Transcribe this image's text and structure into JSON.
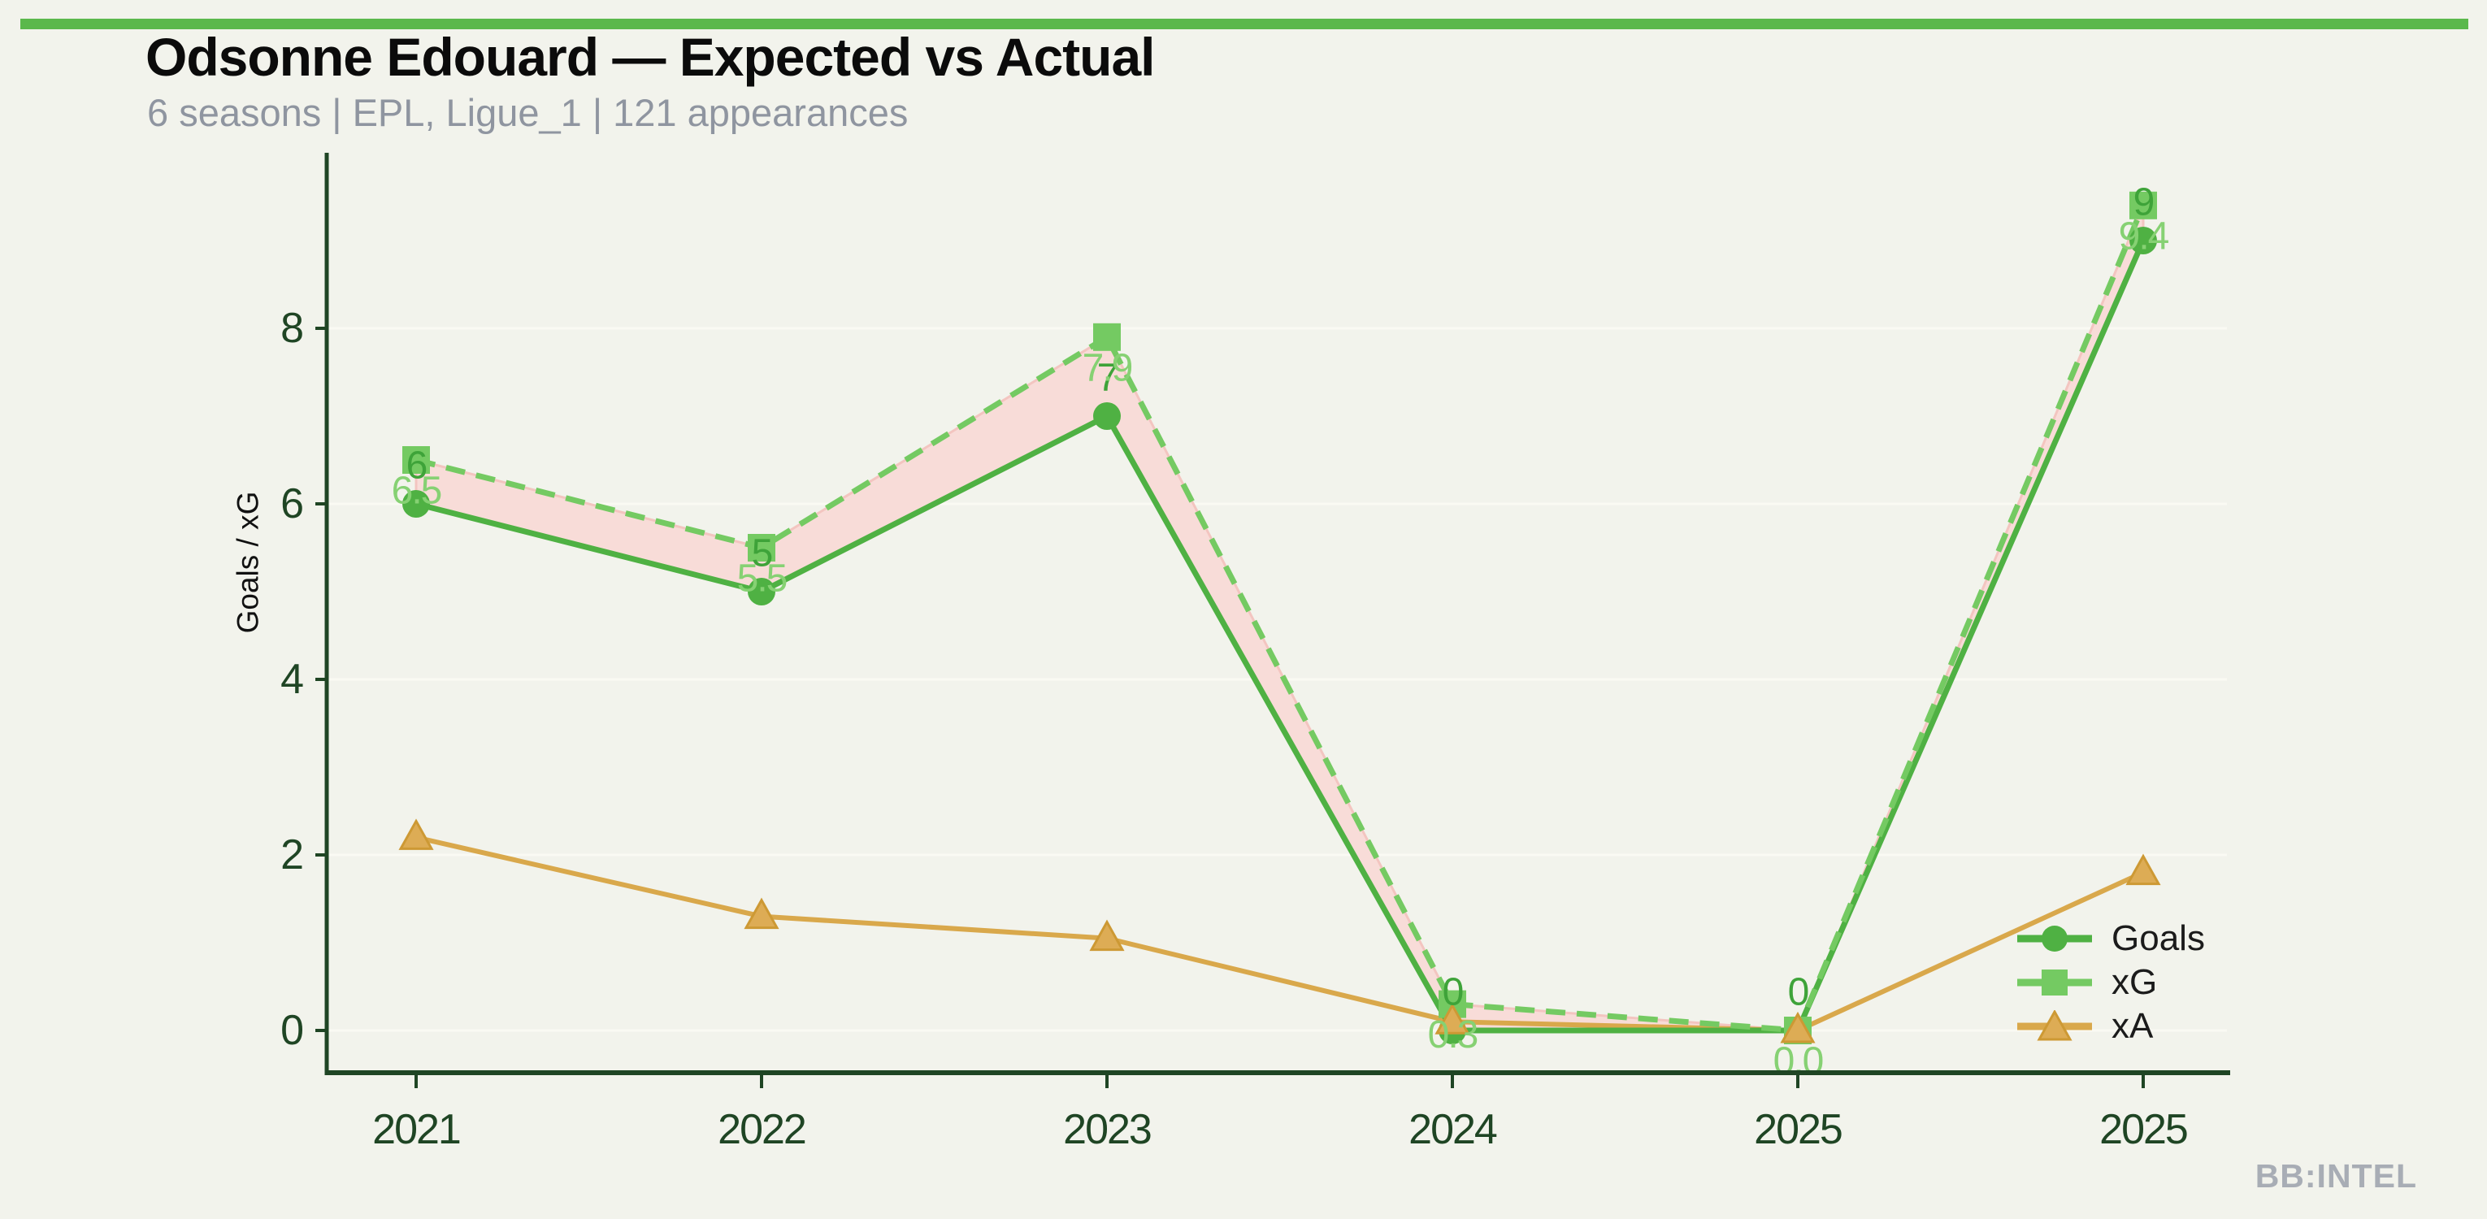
{
  "header": {
    "title": "Odsonne Edouard — Expected vs Actual",
    "subtitle": "6 seasons | EPL, Ligue_1 | 121 appearances"
  },
  "footer": {
    "watermark": "BB:INTEL"
  },
  "colors": {
    "background": "#f2f3ec",
    "top_bar": "#5bb84c",
    "axis": "#1f4524",
    "tick_label": "#1f4524",
    "grid": "#fafaf3",
    "title": "#0b0b0b",
    "subtitle": "#8f95a0",
    "watermark": "#a8adb5",
    "goals": "#4fb143",
    "xg": "#74ca62",
    "xa": "#d9a84b",
    "xa_marker_fill": "#ddac55",
    "xa_marker_edge": "#cd9934",
    "gap_fill": "#f8dcd8",
    "gap_edge": "#f3c5c0",
    "goals_label": "#3ea339",
    "xg_label": "#86d173"
  },
  "chart_data": {
    "type": "line",
    "title": "Odsonne Edouard — Expected vs Actual",
    "categories": [
      "2021",
      "2022",
      "2023",
      "2024",
      "2025",
      "2025"
    ],
    "series": [
      {
        "name": "Goals",
        "marker": "circle",
        "color": "#4fb143",
        "dash": null,
        "values": [
          6,
          5,
          7,
          0,
          0,
          9
        ],
        "point_labels": [
          "6",
          "5",
          "7",
          "0",
          "0",
          "9"
        ],
        "label_color": "#3ea339",
        "label_offset": -47
      },
      {
        "name": "xG",
        "marker": "square",
        "color": "#74ca62",
        "dash": "24 14",
        "values": [
          6.5,
          5.5,
          7.9,
          0.3,
          0.0,
          9.4
        ],
        "point_labels": [
          "6.5",
          "5.5",
          "7.9",
          "0.3",
          "0.0",
          "9.4"
        ],
        "label_color": "#86d173",
        "label_offset": 38
      },
      {
        "name": "xA",
        "marker": "triangle",
        "color": "#d9a84b",
        "dash": null,
        "values": [
          2.2,
          1.3,
          1.05,
          0.1,
          0.0,
          1.8
        ],
        "point_labels": null,
        "label_color": null,
        "label_offset": 0
      }
    ],
    "fill_between": {
      "upper": "xG",
      "lower": "Goals",
      "color": "#f8dcd8",
      "edge": "#f3c5c0"
    },
    "xlabel": "",
    "ylabel": "Goals / xG",
    "yticks": [
      0,
      2,
      4,
      6,
      8
    ],
    "ylim": [
      -0.48,
      10.0
    ],
    "grid": "horizontal-faint",
    "legend_position": "lower right",
    "legend": [
      "Goals",
      "xG",
      "xA"
    ]
  }
}
